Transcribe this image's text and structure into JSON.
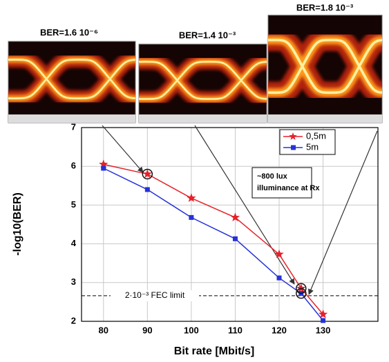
{
  "chart_data": {
    "type": "line",
    "x_label": "Bit rate [Mbit/s]",
    "y_label": "-log10(BER)",
    "x": [
      80,
      90,
      100,
      110,
      120,
      125,
      130
    ],
    "series": [
      {
        "name": "0,5m",
        "color": "#e8202a",
        "values": [
          6.05,
          5.8,
          5.18,
          4.68,
          3.73,
          2.85,
          2.18
        ]
      },
      {
        "name": "5m",
        "color": "#2632d8",
        "values": [
          5.95,
          5.4,
          4.68,
          4.13,
          3.12,
          2.72,
          2.02
        ]
      }
    ],
    "xlim": [
      75,
      142.5
    ],
    "ylim": [
      2,
      7
    ],
    "xticks": [
      80,
      90,
      100,
      110,
      120,
      130
    ],
    "yticks": [
      2,
      3,
      4,
      5,
      6,
      7
    ],
    "grid": true,
    "legend": "upper right",
    "fec_limit": {
      "value": 2.66,
      "label": "2·10⁻³ FEC limit"
    },
    "note": [
      "~800 lux",
      "illuminance at Rx"
    ],
    "eye_labels": [
      "BER=1.6 10⁻⁶",
      "BER=1.4 10⁻³",
      "BER=1.8 10⁻³"
    ]
  }
}
